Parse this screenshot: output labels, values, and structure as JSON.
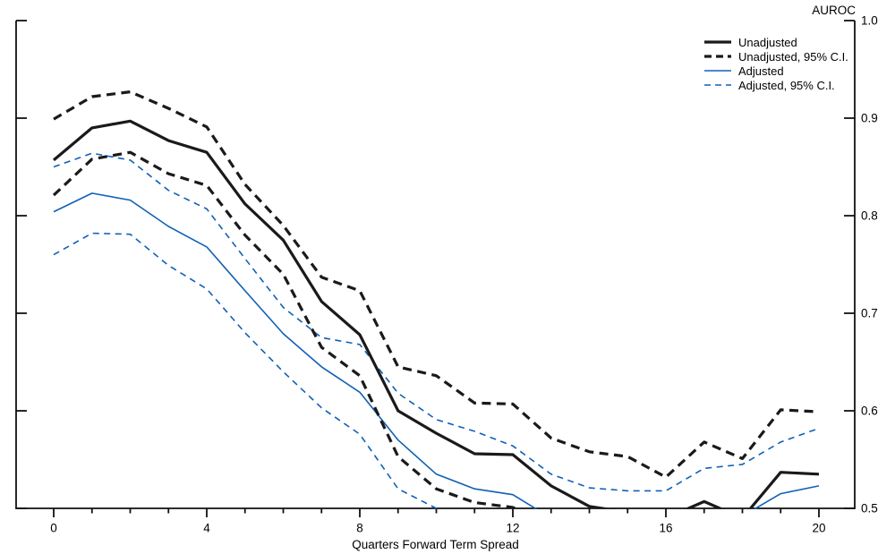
{
  "legend": [
    {
      "label": "Unadjusted",
      "color": "#1a1a1a",
      "style": "solid",
      "stroke_width": 3.2
    },
    {
      "label": "Unadjusted, 95% C.I.",
      "color": "#1a1a1a",
      "style": "dashed",
      "stroke_width": 3.2
    },
    {
      "label": "Adjusted",
      "color": "#1060b6",
      "style": "solid",
      "stroke_width": 1.6
    },
    {
      "label": "Adjusted, 95% C.I.",
      "color": "#1060b6",
      "style": "dashed",
      "stroke_width": 1.6
    }
  ],
  "chart_data": {
    "type": "line",
    "y_axis_title": "AUROC",
    "x_label": "Quarters Forward Term Spread",
    "xlim": [
      0,
      20
    ],
    "ylim": [
      0.5,
      1.0
    ],
    "grid": false,
    "legend_position": "top-right",
    "x": [
      0,
      1,
      2,
      3,
      4,
      5,
      6,
      7,
      8,
      9,
      10,
      11,
      12,
      13,
      14,
      15,
      16,
      17,
      18,
      19,
      20
    ],
    "x_major_ticks": [
      0,
      4,
      8,
      12,
      16,
      20
    ],
    "x_tick_labels": [
      "0",
      "4",
      "8",
      "12",
      "16",
      "20"
    ],
    "x_minor_tick_step": 1,
    "y_ticks": [
      1.0,
      0.9,
      0.8,
      0.7,
      0.6,
      0.5
    ],
    "y_tick_labels": [
      "1.0",
      "0.9",
      "0.8",
      "0.7",
      "0.6",
      "0.5"
    ],
    "clip_note": "values below 0.5 are hidden below the x-axis",
    "series": [
      {
        "name": "Unadjusted",
        "color": "#1a1a1a",
        "style": "solid",
        "stroke_width": 3.2,
        "values": [
          0.857,
          0.89,
          0.897,
          0.877,
          0.865,
          0.812,
          0.775,
          0.712,
          0.678,
          0.6,
          0.577,
          0.556,
          0.555,
          0.523,
          0.502,
          0.496,
          0.49,
          0.507,
          0.49,
          0.537,
          0.535
        ]
      },
      {
        "name": "Unadjusted 95% C.I. upper",
        "color": "#1a1a1a",
        "style": "dashed",
        "stroke_width": 3.2,
        "values": [
          0.899,
          0.922,
          0.927,
          0.91,
          0.891,
          0.832,
          0.79,
          0.737,
          0.723,
          0.645,
          0.636,
          0.608,
          0.607,
          0.572,
          0.558,
          0.553,
          0.532,
          0.568,
          0.551,
          0.601,
          0.599
        ]
      },
      {
        "name": "Unadjusted 95% C.I. lower",
        "color": "#1a1a1a",
        "style": "dashed",
        "stroke_width": 3.2,
        "values": [
          0.821,
          0.858,
          0.865,
          0.843,
          0.831,
          0.78,
          0.74,
          0.665,
          0.636,
          0.553,
          0.52,
          0.506,
          0.501,
          0.48,
          0.47,
          0.465,
          0.46,
          0.47,
          0.465,
          0.48,
          0.485
        ]
      },
      {
        "name": "Adjusted",
        "color": "#1060b6",
        "style": "solid",
        "stroke_width": 1.6,
        "values": [
          0.804,
          0.823,
          0.816,
          0.789,
          0.768,
          0.723,
          0.679,
          0.645,
          0.619,
          0.57,
          0.535,
          0.52,
          0.514,
          0.49,
          0.48,
          0.475,
          0.47,
          0.48,
          0.492,
          0.515,
          0.523
        ]
      },
      {
        "name": "Adjusted 95% C.I. upper",
        "color": "#1060b6",
        "style": "dashed",
        "stroke_width": 1.6,
        "values": [
          0.85,
          0.864,
          0.857,
          0.826,
          0.807,
          0.756,
          0.706,
          0.675,
          0.668,
          0.618,
          0.591,
          0.579,
          0.564,
          0.535,
          0.521,
          0.518,
          0.518,
          0.541,
          0.545,
          0.568,
          0.582
        ]
      },
      {
        "name": "Adjusted 95% C.I. lower",
        "color": "#1060b6",
        "style": "dashed",
        "stroke_width": 1.6,
        "values": [
          0.76,
          0.782,
          0.781,
          0.749,
          0.725,
          0.68,
          0.64,
          0.603,
          0.576,
          0.52,
          0.5,
          0.48,
          0.47,
          0.46,
          0.455,
          0.45,
          0.45,
          0.455,
          0.465,
          0.48,
          0.49
        ]
      }
    ]
  }
}
